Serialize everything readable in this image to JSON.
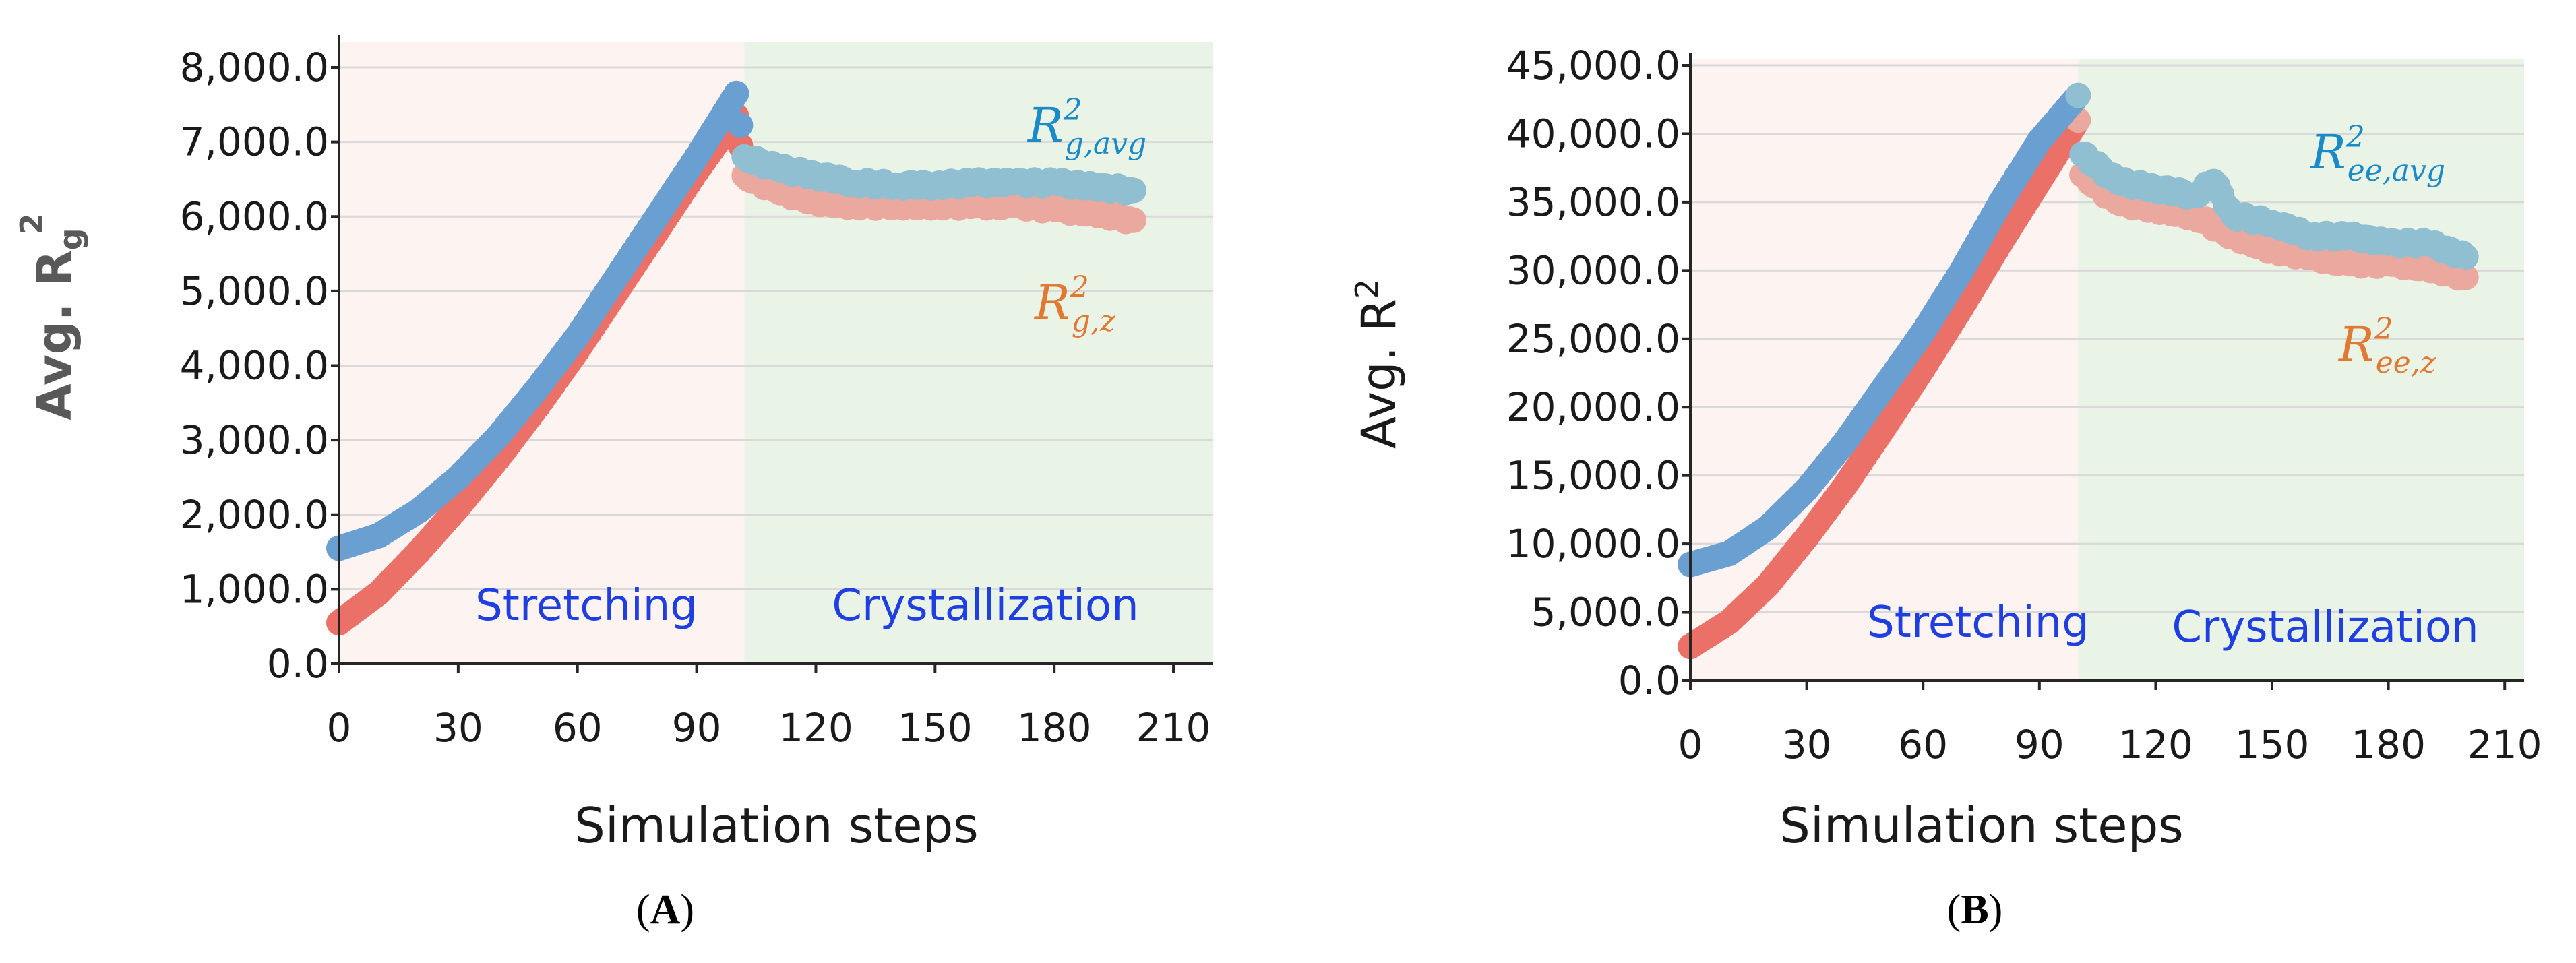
{
  "colors": {
    "stretching_bg": "#fdf3f1",
    "crystallization_bg": "#e9f4e6",
    "grid": "#d9d9d9",
    "axis": "#262626",
    "avg_series": "#6a9fd2",
    "avg_series_late": "#8fbfd1",
    "z_series": "#ea7068",
    "z_series_late": "#eba89f",
    "avg_label": "#1a8bc6",
    "z_label": "#e07a32",
    "phase_label": "#1f3fe0"
  },
  "panels": [
    {
      "id": "A",
      "label_open": "(",
      "label_letter": "A",
      "label_close": ")",
      "xlabel": "Simulation steps",
      "ylabel_main": "Avg. R",
      "ylabel_sub": "g",
      "ylabel_sup": "2",
      "phase_labels": {
        "stretching": "Stretching",
        "crystallization": "Crystallization"
      },
      "series_labels": {
        "avg": {
          "base": "R",
          "sup": "2",
          "sub": "g,avg"
        },
        "z": {
          "base": "R",
          "sup": "2",
          "sub": "g,z"
        }
      },
      "x_ticks": [
        "0",
        "30",
        "60",
        "90",
        "120",
        "150",
        "180",
        "210"
      ],
      "y_ticks": [
        "0.0",
        "1,000.0",
        "2,000.0",
        "3,000.0",
        "4,000.0",
        "5,000.0",
        "6,000.0",
        "7,000.0",
        "8,000.0"
      ]
    },
    {
      "id": "B",
      "label_open": "(",
      "label_letter": "B",
      "label_close": ")",
      "xlabel": "Simulation steps",
      "ylabel_main": "Avg. R",
      "ylabel_sub": "",
      "ylabel_sup": "2",
      "phase_labels": {
        "stretching": "Stretching",
        "crystallization": "Crystallization"
      },
      "series_labels": {
        "avg": {
          "base": "R",
          "sup": "2",
          "sub": "ee,avg"
        },
        "z": {
          "base": "R",
          "sup": "2",
          "sub": "ee,z"
        }
      },
      "x_ticks": [
        "0",
        "30",
        "60",
        "90",
        "120",
        "150",
        "180",
        "210"
      ],
      "y_ticks": [
        "0.0",
        "5,000.0",
        "10,000.0",
        "15,000.0",
        "20,000.0",
        "25,000.0",
        "30,000.0",
        "35,000.0",
        "40,000.0",
        "45,000.0"
      ]
    }
  ],
  "chart_data": [
    {
      "type": "scatter",
      "xlabel": "Simulation steps",
      "ylabel": "Avg. Rg²",
      "xlim": [
        0,
        220
      ],
      "ylim": [
        0,
        8000
      ],
      "grid": true,
      "phases": [
        {
          "name": "Stretching",
          "x_range": [
            0,
            102
          ]
        },
        {
          "name": "Crystallization",
          "x_range": [
            102,
            220
          ]
        }
      ],
      "series": [
        {
          "name": "R²g,avg",
          "x": [
            0,
            10,
            20,
            30,
            40,
            50,
            60,
            70,
            80,
            90,
            100,
            102,
            110,
            120,
            130,
            140,
            150,
            160,
            170,
            180,
            190,
            200
          ],
          "y": [
            1550,
            1720,
            2050,
            2500,
            3050,
            3700,
            4400,
            5200,
            6000,
            6800,
            7650,
            6800,
            6650,
            6550,
            6450,
            6420,
            6420,
            6450,
            6450,
            6450,
            6400,
            6350
          ]
        },
        {
          "name": "R²g,z",
          "x": [
            0,
            10,
            20,
            30,
            40,
            50,
            60,
            70,
            80,
            90,
            100,
            102,
            110,
            120,
            130,
            140,
            150,
            160,
            170,
            180,
            190,
            200
          ],
          "y": [
            550,
            950,
            1500,
            2100,
            2750,
            3450,
            4200,
            5000,
            5800,
            6600,
            7350,
            6550,
            6350,
            6200,
            6150,
            6150,
            6150,
            6150,
            6150,
            6100,
            6050,
            5950
          ]
        }
      ]
    },
    {
      "type": "scatter",
      "xlabel": "Simulation steps",
      "ylabel": "Avg. R²",
      "xlim": [
        0,
        215
      ],
      "ylim": [
        0,
        47000
      ],
      "grid": true,
      "phases": [
        {
          "name": "Stretching",
          "x_range": [
            0,
            100
          ]
        },
        {
          "name": "Crystallization",
          "x_range": [
            100,
            215
          ]
        }
      ],
      "series": [
        {
          "name": "R²ee,avg",
          "x": [
            0,
            10,
            20,
            30,
            40,
            50,
            60,
            70,
            80,
            90,
            100,
            101,
            110,
            120,
            130,
            135,
            140,
            150,
            160,
            170,
            180,
            190,
            200
          ],
          "y": [
            8500,
            9300,
            11200,
            14000,
            17500,
            21500,
            25500,
            30000,
            35000,
            39500,
            42800,
            38500,
            36500,
            36000,
            35500,
            36500,
            34000,
            33500,
            32500,
            32500,
            32000,
            32000,
            31000
          ]
        },
        {
          "name": "R²ee,z",
          "x": [
            0,
            10,
            20,
            30,
            40,
            50,
            60,
            70,
            80,
            90,
            100,
            101,
            110,
            120,
            130,
            140,
            150,
            160,
            170,
            180,
            190,
            200
          ],
          "y": [
            2500,
            4300,
            7000,
            10500,
            14300,
            18500,
            22800,
            27300,
            32000,
            36500,
            41000,
            37000,
            35000,
            34500,
            34000,
            32500,
            31500,
            31000,
            30500,
            30500,
            30200,
            29500
          ]
        }
      ]
    }
  ]
}
